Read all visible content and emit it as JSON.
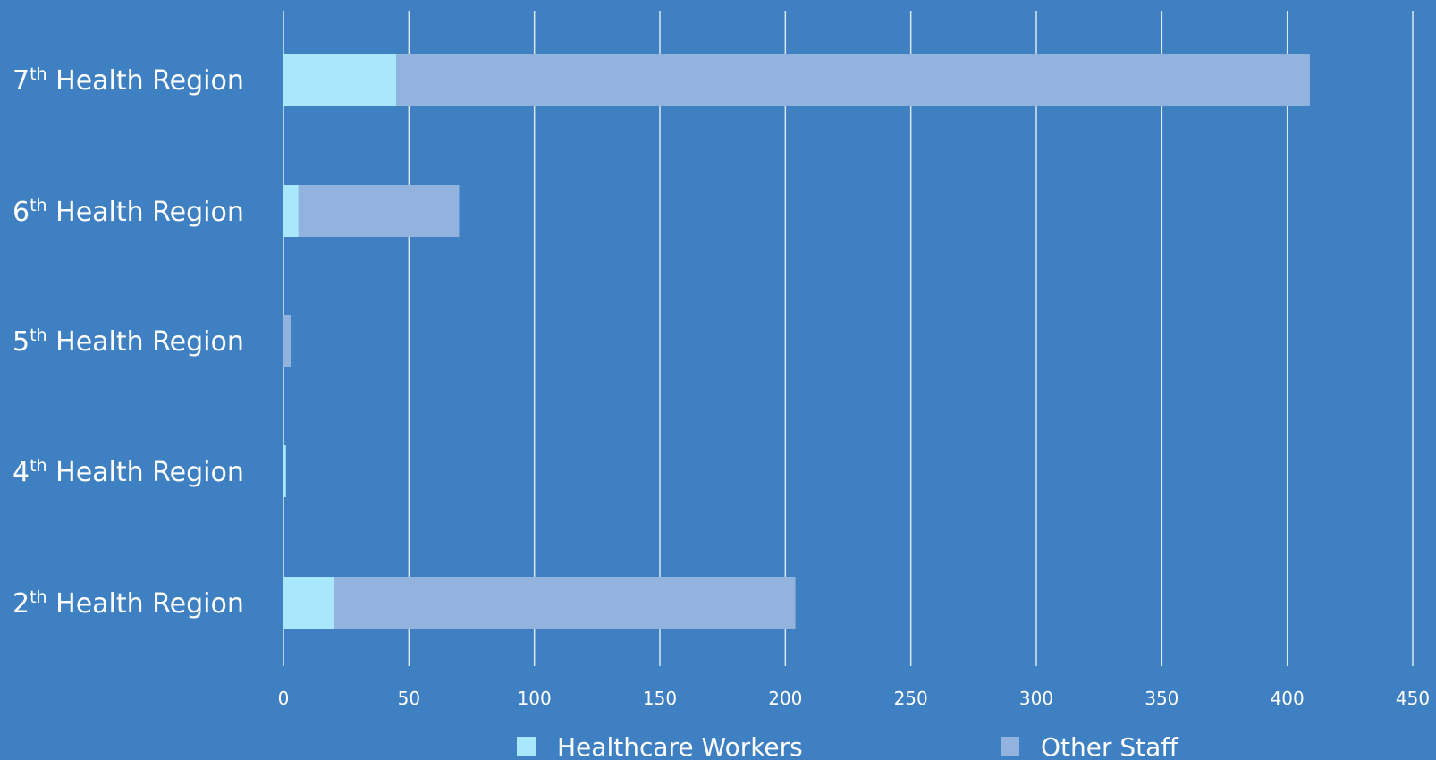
{
  "chart_data": {
    "type": "bar",
    "orientation": "horizontal",
    "stacked": true,
    "categories": [
      {
        "ordinal": "7",
        "suffix": "th",
        "rest": " Health Region"
      },
      {
        "ordinal": "6",
        "suffix": "th",
        "rest": " Health Region"
      },
      {
        "ordinal": "5",
        "suffix": "th",
        "rest": " Health Region"
      },
      {
        "ordinal": "4",
        "suffix": "th",
        "rest": " Health Region"
      },
      {
        "ordinal": "2",
        "suffix": "th",
        "rest": " Health Region"
      }
    ],
    "series": [
      {
        "name": "Healthcare Workers",
        "color": "#a9e7fd",
        "values": [
          45,
          6,
          0,
          1,
          20
        ]
      },
      {
        "name": "Other Staff",
        "color": "#92b3de",
        "values": [
          364,
          64,
          3,
          0,
          184
        ]
      }
    ],
    "xlim": [
      0,
      450
    ],
    "xticks": [
      0,
      50,
      100,
      150,
      200,
      250,
      300,
      350,
      400,
      450
    ],
    "grid": "vertical",
    "legend_position": "bottom",
    "colors": {
      "background": "#3f80c3",
      "gridline": "#dce8f5",
      "text": "#ffffff"
    }
  }
}
